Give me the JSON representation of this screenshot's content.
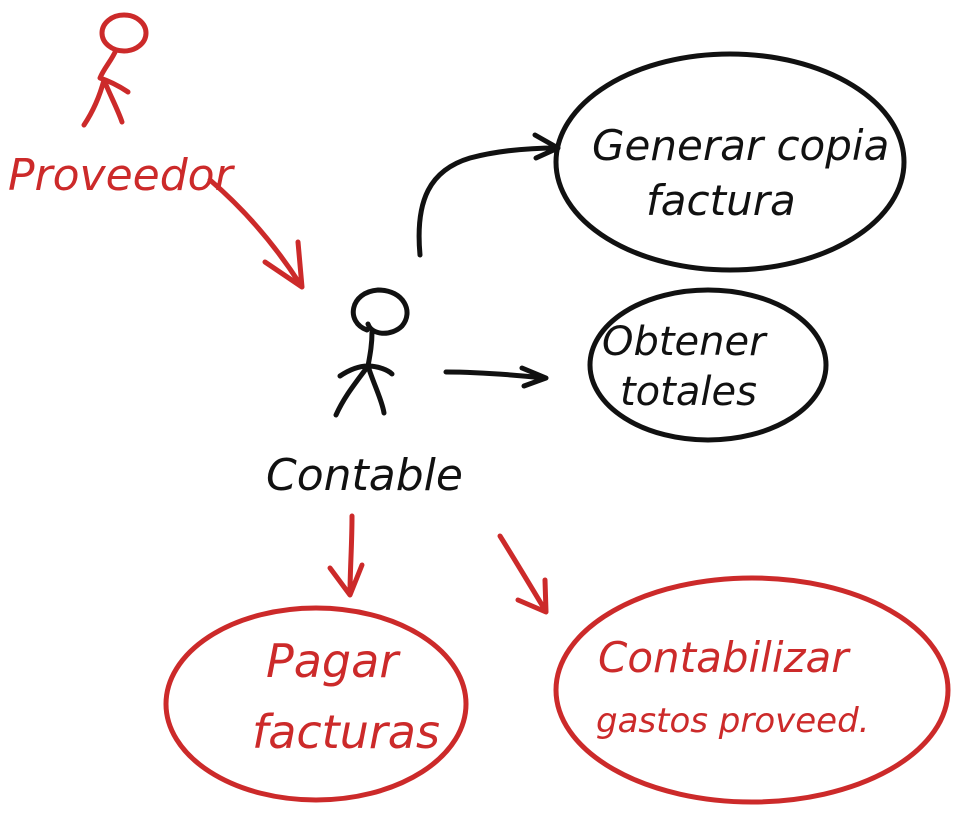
{
  "colors": {
    "ink": "#111111",
    "red_ink": "#cc2a2a",
    "background": "#ffffff"
  },
  "actors": {
    "proveedor": {
      "label": "Proveedor",
      "color": "#cc2a2a"
    },
    "contable": {
      "label": "Contable",
      "color": "#111111"
    }
  },
  "use_cases": {
    "generar_copia": {
      "line1": "Generar copia",
      "line2": "factura",
      "color": "#111111"
    },
    "obtener_totales": {
      "line1": "Obtener",
      "line2": "totales",
      "color": "#111111"
    },
    "pagar_facturas": {
      "line1": "Pagar",
      "line2": "facturas",
      "color": "#cc2a2a"
    },
    "contabilizar": {
      "line1": "Contabilizar",
      "line2": "gastos proveed.",
      "color": "#cc2a2a"
    }
  }
}
